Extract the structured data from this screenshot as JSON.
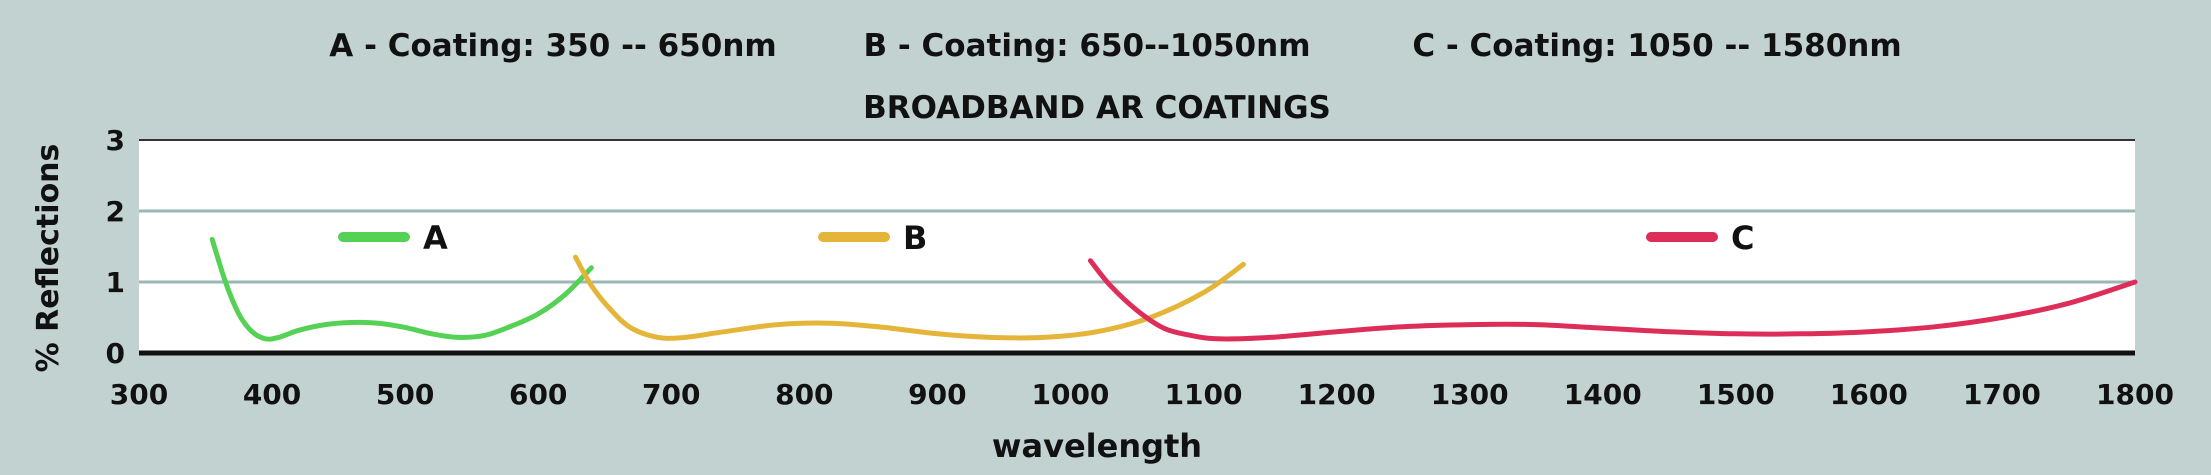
{
  "header": {
    "coating_a": "A - Coating: 350 -- 650nm",
    "coating_b": "B - Coating: 650--1050nm",
    "coating_c": "C - Coating: 1050 -- 1580nm"
  },
  "chart_data": {
    "type": "line",
    "title": "BROADBAND AR COATINGS",
    "xlabel": "wavelength",
    "ylabel": "% Reflections",
    "xlim": [
      300,
      1800
    ],
    "ylim": [
      0,
      3
    ],
    "xticks": [
      300,
      400,
      500,
      600,
      700,
      800,
      900,
      1000,
      1100,
      1200,
      1300,
      1400,
      1500,
      1600,
      1700,
      1800
    ],
    "yticks": [
      0,
      1,
      2,
      3
    ],
    "grid": "horizontal",
    "legend_placement": "inline-top",
    "series": [
      {
        "name": "A",
        "color": "#55d155",
        "x": [
          355,
          365,
          375,
          385,
          395,
          405,
          420,
          440,
          460,
          480,
          500,
          520,
          540,
          560,
          580,
          600,
          620,
          640
        ],
        "y": [
          1.6,
          1.0,
          0.55,
          0.3,
          0.2,
          0.22,
          0.32,
          0.4,
          0.43,
          0.42,
          0.36,
          0.27,
          0.22,
          0.25,
          0.38,
          0.55,
          0.82,
          1.2
        ]
      },
      {
        "name": "B",
        "color": "#e5b53a",
        "x": [
          628,
          640,
          655,
          670,
          690,
          710,
          740,
          780,
          820,
          860,
          900,
          940,
          980,
          1020,
          1060,
          1100,
          1130
        ],
        "y": [
          1.35,
          0.95,
          0.6,
          0.35,
          0.22,
          0.22,
          0.3,
          0.4,
          0.42,
          0.36,
          0.27,
          0.22,
          0.22,
          0.3,
          0.5,
          0.85,
          1.25
        ]
      },
      {
        "name": "C",
        "color": "#dd2e5a",
        "x": [
          1015,
          1030,
          1050,
          1070,
          1090,
          1110,
          1150,
          1200,
          1250,
          1300,
          1350,
          1400,
          1450,
          1500,
          1550,
          1600,
          1650,
          1700,
          1750,
          1800
        ],
        "y": [
          1.3,
          0.95,
          0.6,
          0.35,
          0.25,
          0.2,
          0.22,
          0.3,
          0.37,
          0.4,
          0.4,
          0.35,
          0.3,
          0.27,
          0.27,
          0.3,
          0.37,
          0.5,
          0.7,
          1.0
        ]
      }
    ]
  }
}
